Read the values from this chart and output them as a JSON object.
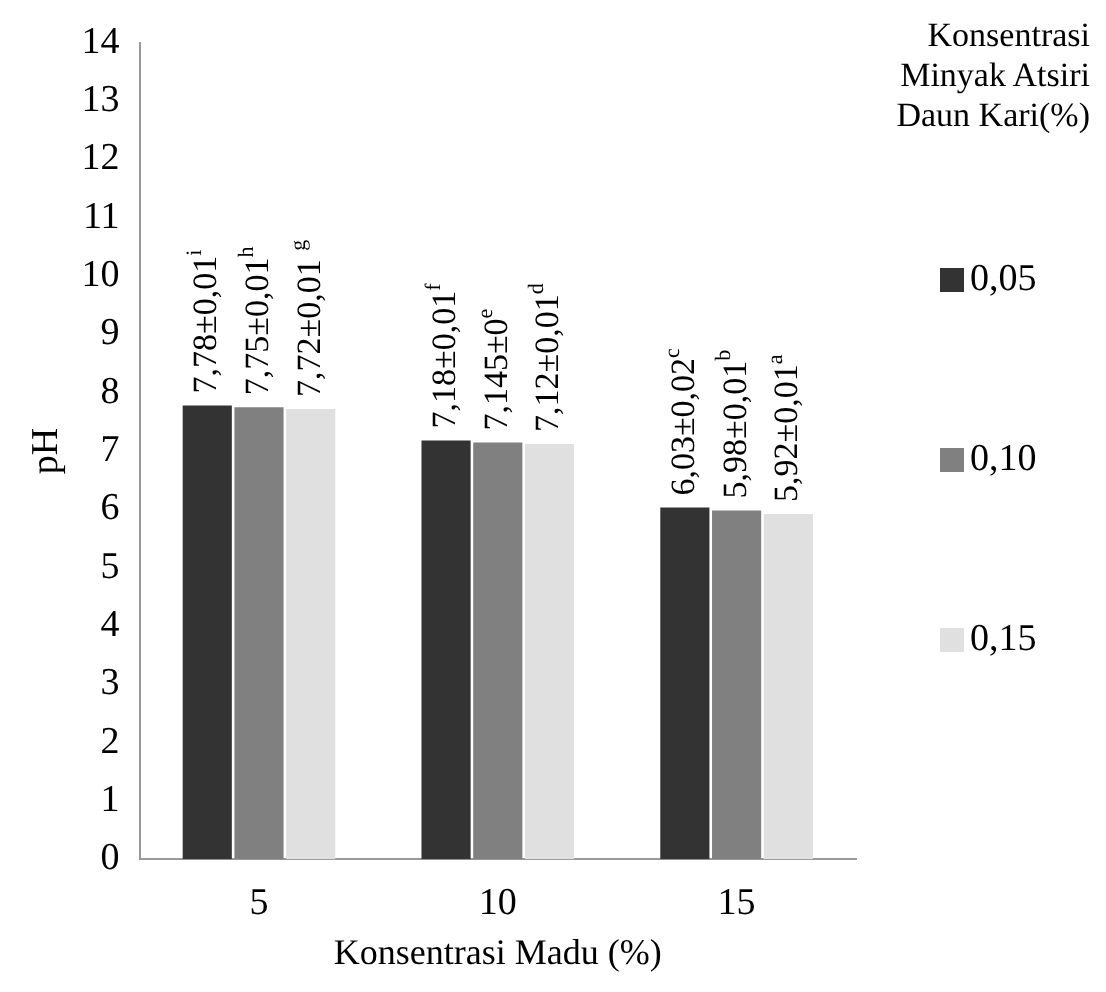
{
  "chart_data": {
    "type": "bar",
    "xlabel": "Konsentrasi Madu (%)",
    "ylabel": "pH",
    "legend_title": "Konsentrasi Minyak Atsiri Daun Kari(%)",
    "legend": "right",
    "categories": [
      "5",
      "10",
      "15"
    ],
    "series": [
      {
        "name": "0,05",
        "color": "#333333",
        "values": [
          7.78,
          7.18,
          6.03
        ],
        "value_labels": [
          "7,78±0,01$^{i}$",
          "7,18±0,01$^{f}$",
          "6,03±0,02$^{c}$"
        ]
      },
      {
        "name": "0,10",
        "color": "#808080",
        "values": [
          7.75,
          7.145,
          5.98
        ],
        "value_labels": [
          "7,75±0,01$^{h}$",
          "7,145±0$^{e}$",
          "5,98±0,01$^{b}$"
        ]
      },
      {
        "name": "0,15",
        "color": "#e0e0e0",
        "values": [
          7.72,
          7.12,
          5.92
        ],
        "value_labels": [
          "7,72±0,01 $^{g}$",
          "7,12±0,01$^{d}$",
          "5,92±0,01$^{a}$"
        ]
      }
    ],
    "ylim": [
      0,
      14
    ],
    "yticks": [
      0,
      1,
      2,
      3,
      4,
      5,
      6,
      7,
      8,
      9,
      10,
      11,
      12,
      13,
      14
    ],
    "grid": false
  }
}
